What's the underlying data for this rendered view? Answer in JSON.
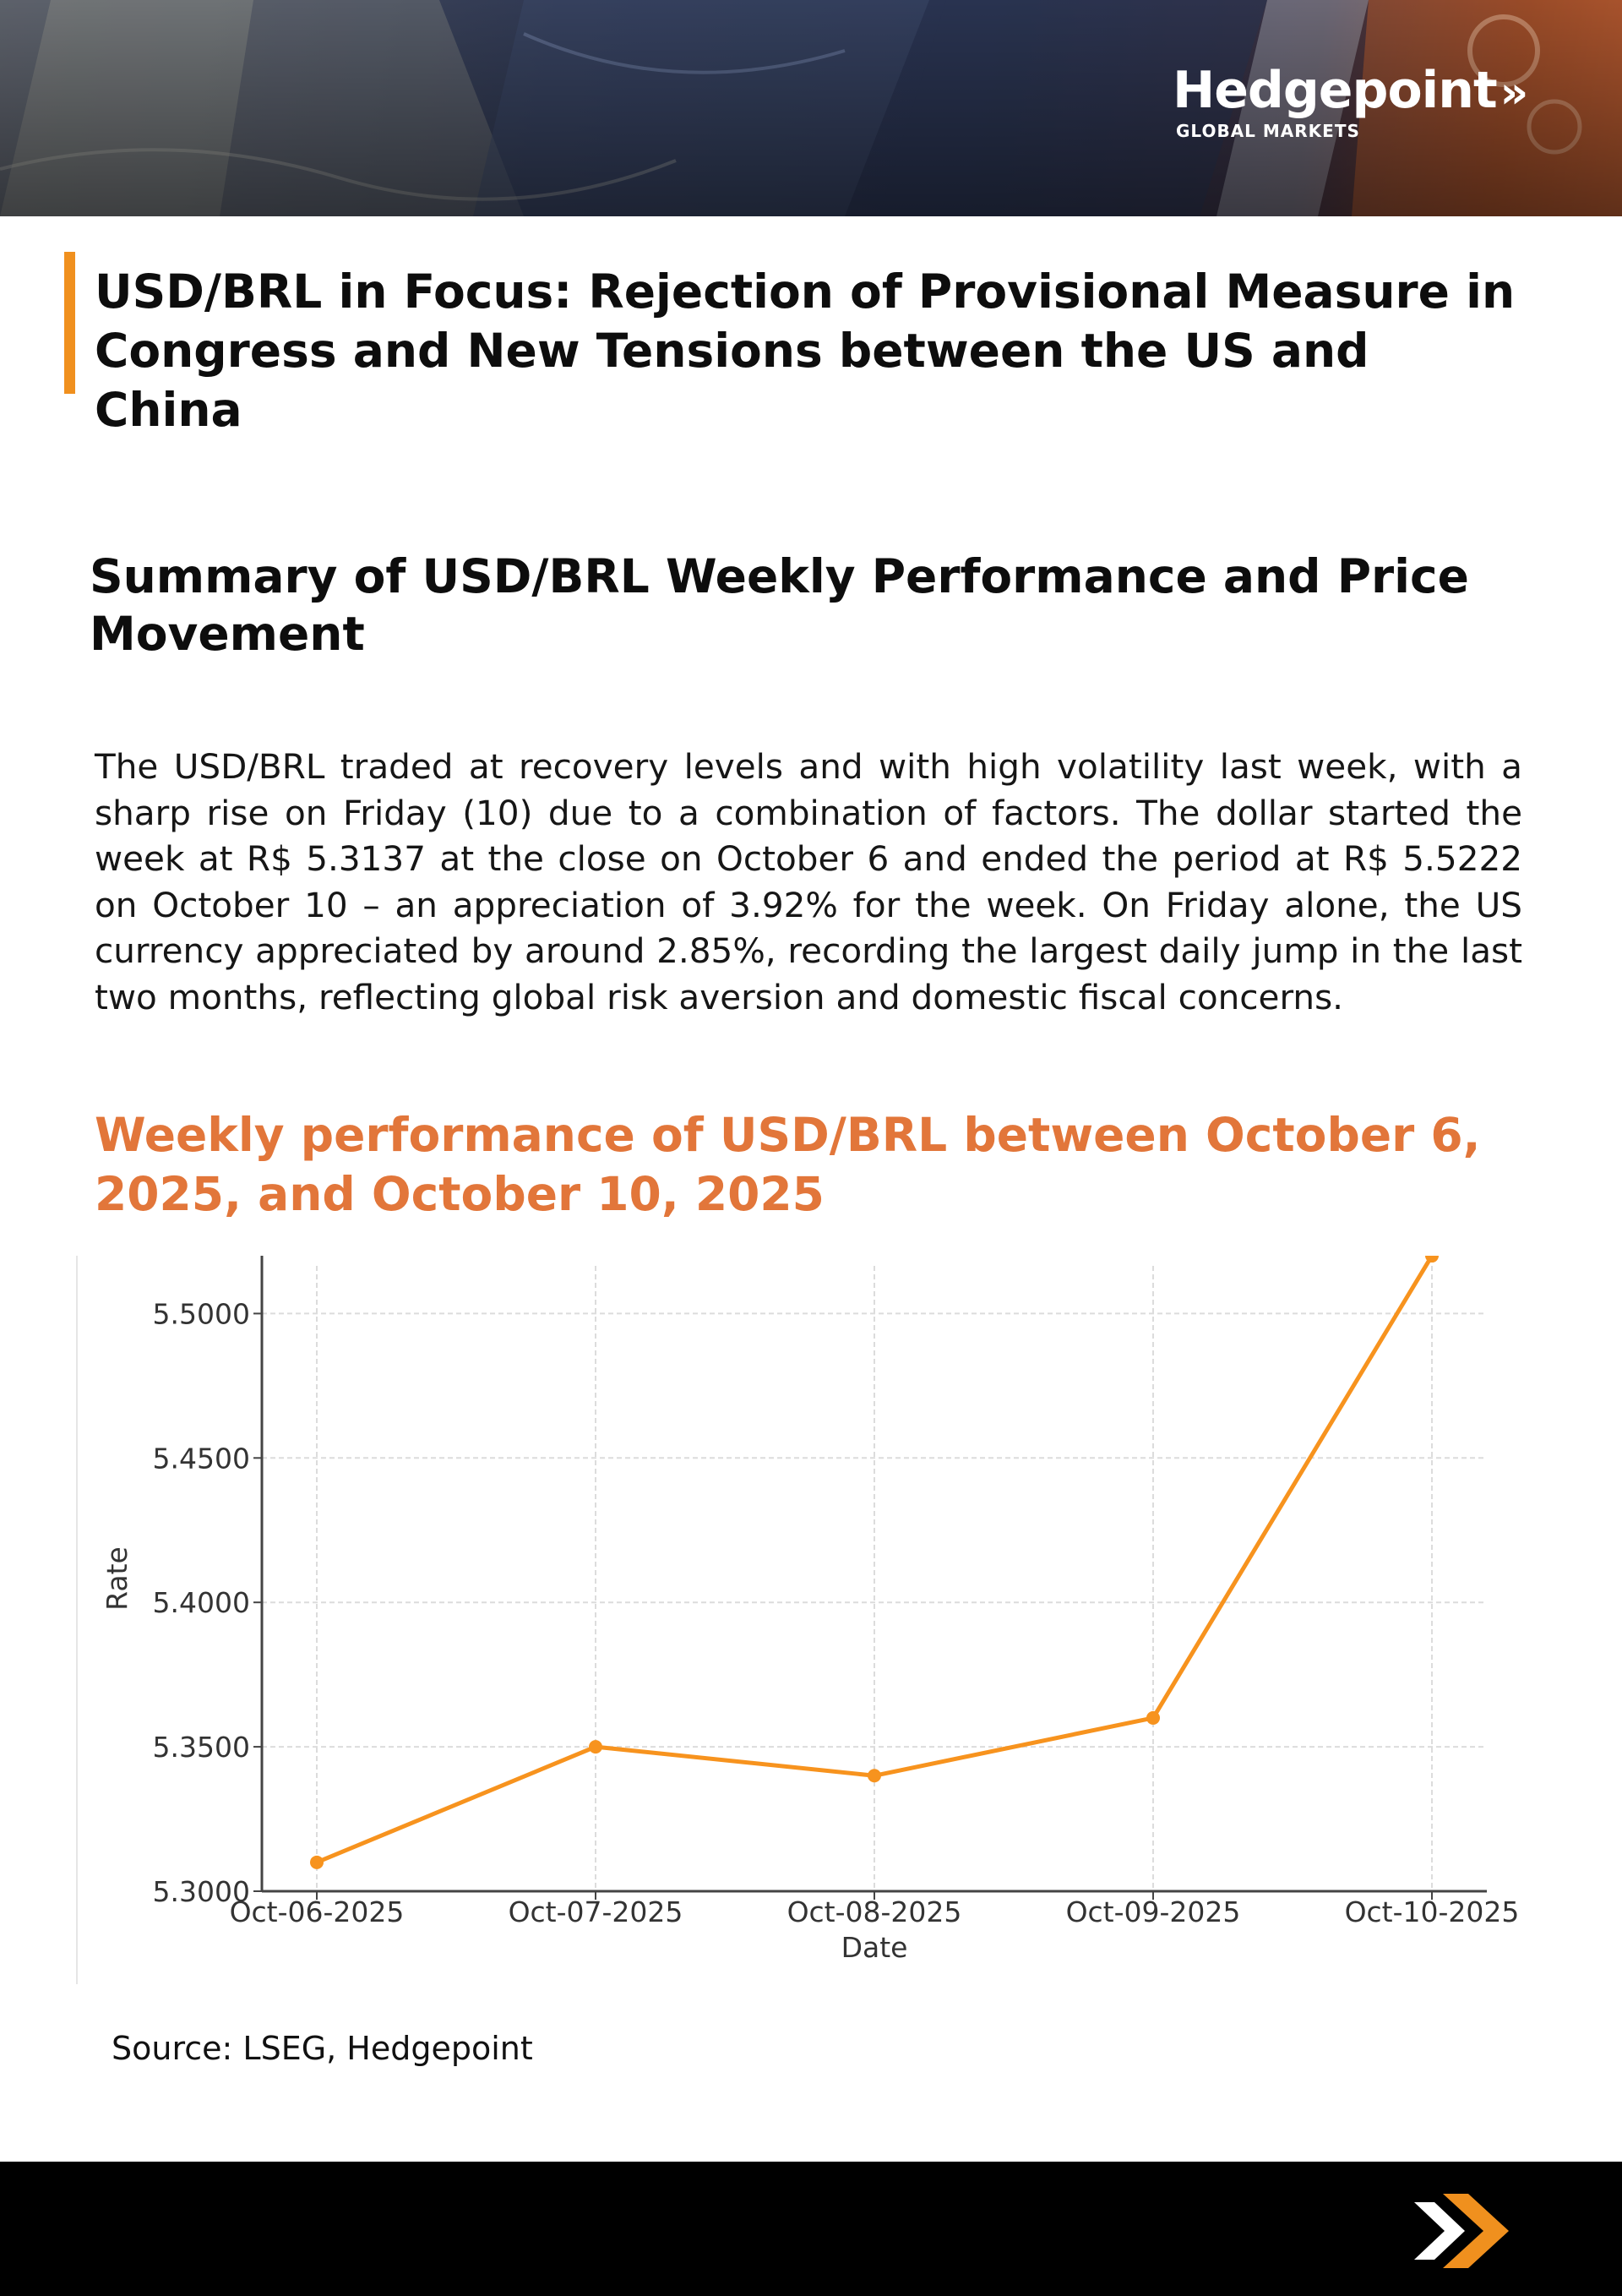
{
  "header": {
    "brand": "Hedgepoint",
    "brand_chevron": "»",
    "brand_sub": "GLOBAL MARKETS"
  },
  "article": {
    "title": "USD/BRL in Focus: Rejection of Provisional Measure in Congress and New Tensions between the US and China",
    "section_title": "Summary of USD/BRL Weekly Performance and Price Movement",
    "paragraph": "The USD/BRL traded at recovery levels and with high volatility last week, with a sharp rise on Friday (10) due to a combination of factors. The dollar started the week at R$ 5.3137 at the close on October 6 and ended the period at R$ 5.5222 on October 10 – an appreciation of 3.92% for the week. On Friday alone, the US currency appreciated by around 2.85%, recording the largest daily jump in the last two months, reflecting global risk aversion and domestic fiscal concerns.",
    "chart_heading": "Weekly performance of USD/BRL between October 6, 2025, and October 10, 2025",
    "source": "Source: LSEG, Hedgepoint"
  },
  "colors": {
    "accent": "#f0901e",
    "chart_heading": "#e2763a",
    "line": "#f7931e"
  },
  "footer": {
    "icon": "double-chevron-right-icon"
  },
  "chart_data": {
    "type": "line",
    "title": "",
    "xlabel": "Date",
    "ylabel": "Rate",
    "categories": [
      "Oct-06-2025",
      "Oct-07-2025",
      "Oct-08-2025",
      "Oct-09-2025",
      "Oct-10-2025"
    ],
    "values": [
      5.31,
      5.35,
      5.34,
      5.36,
      5.52
    ],
    "yticks": [
      "5.3000",
      "5.3500",
      "5.4000",
      "5.4500",
      "5.5000"
    ],
    "ylim": [
      5.3,
      5.5165
    ],
    "grid": true,
    "markers": true
  }
}
